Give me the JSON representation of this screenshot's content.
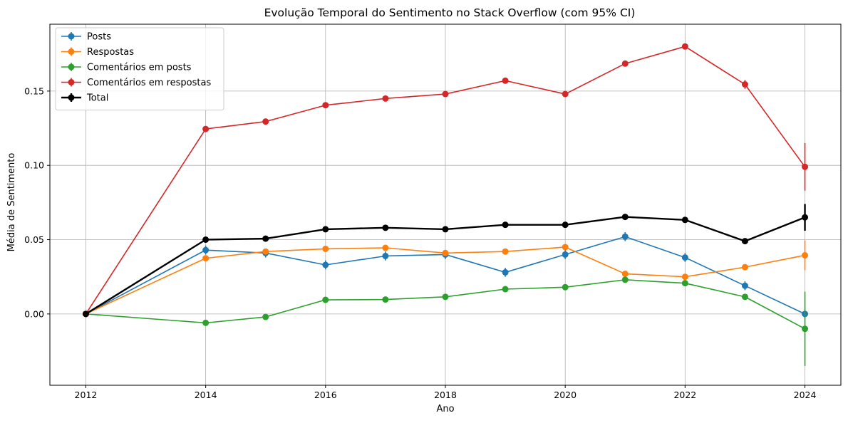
{
  "chart_data": {
    "type": "line",
    "title": "Evolução Temporal do Sentimento no Stack Overflow (com 95% CI)",
    "xlabel": "Ano",
    "ylabel": "Média de Sentimento",
    "xlim": [
      2011.4,
      2024.6
    ],
    "ylim": [
      -0.048,
      0.195
    ],
    "x": [
      2012,
      2014,
      2015,
      2016,
      2017,
      2018,
      2019,
      2020,
      2021,
      2022,
      2023,
      2024
    ],
    "xticks": [
      2012,
      2014,
      2016,
      2018,
      2020,
      2022,
      2024
    ],
    "xtick_labels": [
      "2012",
      "2014",
      "2016",
      "2018",
      "2020",
      "2022",
      "2024"
    ],
    "yticks": [
      0.0,
      0.05,
      0.1,
      0.15
    ],
    "ytick_labels": [
      "0.00",
      "0.05",
      "0.10",
      "0.15"
    ],
    "grid": true,
    "legend_position": "top-left",
    "series": [
      {
        "name": "Posts",
        "color": "#1f77b4",
        "values": [
          0.0,
          0.043,
          0.041,
          0.033,
          0.039,
          0.04,
          0.028,
          0.04,
          0.052,
          0.038,
          0.019,
          0.0
        ],
        "ci": [
          0.0,
          0.003,
          0.003,
          0.003,
          0.003,
          0.003,
          0.003,
          0.003,
          0.003,
          0.003,
          0.003,
          0.003
        ]
      },
      {
        "name": "Respostas",
        "color": "#ff7f0e",
        "values": [
          0.0,
          0.0375,
          0.042,
          0.0438,
          0.0445,
          0.041,
          0.042,
          0.045,
          0.027,
          0.025,
          0.0315,
          0.0395
        ],
        "ci": [
          0.0,
          0.0015,
          0.0015,
          0.0015,
          0.0015,
          0.0015,
          0.0015,
          0.0015,
          0.0015,
          0.0015,
          0.0015,
          0.01
        ]
      },
      {
        "name": "Comentários em posts",
        "color": "#2ca02c",
        "values": [
          0.0,
          -0.006,
          -0.002,
          0.0095,
          0.0097,
          0.0115,
          0.0167,
          0.018,
          0.023,
          0.0207,
          0.0115,
          -0.01
        ],
        "ci": [
          0.0,
          0.001,
          0.001,
          0.001,
          0.001,
          0.001,
          0.001,
          0.001,
          0.001,
          0.001,
          0.001,
          0.025
        ]
      },
      {
        "name": "Comentários em respostas",
        "color": "#d62728",
        "values": [
          0.0,
          0.1245,
          0.1295,
          0.1405,
          0.145,
          0.148,
          0.157,
          0.148,
          0.1685,
          0.18,
          0.1545,
          0.099
        ],
        "ci": [
          0.0,
          0.001,
          0.001,
          0.001,
          0.001,
          0.001,
          0.002,
          0.001,
          0.002,
          0.002,
          0.003,
          0.016
        ]
      },
      {
        "name": "Total",
        "color": "#000000",
        "bold": true,
        "values": [
          0.0,
          0.05,
          0.0507,
          0.057,
          0.058,
          0.057,
          0.06,
          0.06,
          0.0653,
          0.0633,
          0.049,
          0.065
        ],
        "ci": [
          0.0,
          0.001,
          0.001,
          0.001,
          0.001,
          0.001,
          0.001,
          0.001,
          0.001,
          0.001,
          0.001,
          0.009
        ]
      }
    ]
  }
}
